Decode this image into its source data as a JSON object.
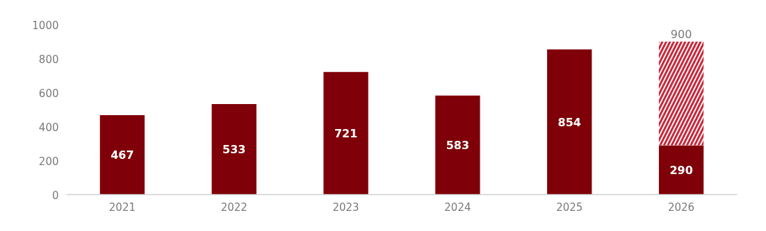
{
  "chart_data": {
    "type": "bar",
    "stacked": true,
    "categories": [
      "2021",
      "2022",
      "2023",
      "2024",
      "2025",
      "2026"
    ],
    "series": [
      {
        "color": "#7f0008",
        "values": [
          467,
          533,
          721,
          583,
          854,
          290
        ],
        "value_labels": [
          "467",
          "533",
          "721",
          "583",
          "854",
          "290"
        ]
      },
      {
        "color": "#c8283c",
        "values": [
          null,
          null,
          null,
          null,
          null,
          610
        ]
      }
    ],
    "totals": [
      null,
      null,
      null,
      null,
      null,
      "900"
    ],
    "ylim": [
      0,
      1000
    ],
    "yticks": [
      0,
      200,
      400,
      600,
      800,
      1000
    ],
    "grid": false
  }
}
